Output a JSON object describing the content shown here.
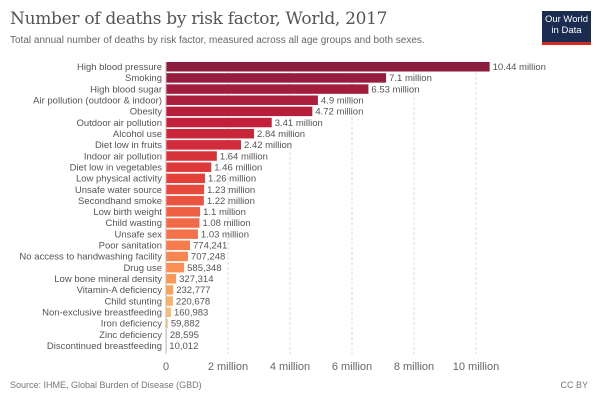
{
  "header": {
    "title": "Number of deaths by risk factor, World, 2017",
    "subtitle": "Total annual number of deaths by risk factor, measured across all age groups and both sexes.",
    "logo_text": "Our World in Data"
  },
  "footer": {
    "source": "Source: IHME, Global Burden of Disease (GBD)",
    "license": "CC BY"
  },
  "colors": {
    "scale": [
      "#8c1c3e",
      "#c21f3c",
      "#e4403a",
      "#f5734a",
      "#fba25a",
      "#fde29a"
    ]
  },
  "chart_data": {
    "type": "bar",
    "orientation": "horizontal",
    "title": "Number of deaths by risk factor, World, 2017",
    "xlim": [
      0,
      10440000
    ],
    "grid": "vertical dashed",
    "ticks": [
      {
        "value": 0,
        "label": "0"
      },
      {
        "value": 2000000,
        "label": "2 million"
      },
      {
        "value": 4000000,
        "label": "4 million"
      },
      {
        "value": 6000000,
        "label": "6 million"
      },
      {
        "value": 8000000,
        "label": "8 million"
      },
      {
        "value": 10000000,
        "label": "10 million"
      }
    ],
    "categories": [
      "High blood pressure",
      "Smoking",
      "High blood sugar",
      "Air pollution (outdoor & indoor)",
      "Obesity",
      "Outdoor air pollution",
      "Alcohol use",
      "Diet low in fruits",
      "Indoor air pollution",
      "Diet low in vegetables",
      "Low physical activity",
      "Unsafe water source",
      "Secondhand smoke",
      "Low birth weight",
      "Child wasting",
      "Unsafe sex",
      "Poor sanitation",
      "No access to handwashing facility",
      "Drug use",
      "Low bone mineral density",
      "Vitamin-A deficiency",
      "Child stunting",
      "Non-exclusive breastfeeding",
      "Iron deficiency",
      "Zinc deficiency",
      "Discontinued breastfeeding"
    ],
    "values": [
      10440000,
      7100000,
      6530000,
      4900000,
      4720000,
      3410000,
      2840000,
      2420000,
      1640000,
      1460000,
      1260000,
      1230000,
      1220000,
      1100000,
      1080000,
      1030000,
      774241,
      707248,
      585348,
      327314,
      232777,
      220678,
      160983,
      59882,
      28595,
      10012
    ],
    "labels": [
      "10.44 million",
      "7.1 million",
      "6.53 million",
      "4.9 million",
      "4.72 million",
      "3.41 million",
      "2.84 million",
      "2.42 million",
      "1.64 million",
      "1.46 million",
      "1.26 million",
      "1.23 million",
      "1.22 million",
      "1.1 million",
      "1.08 million",
      "1.03 million",
      "774,241",
      "707,248",
      "585,348",
      "327,314",
      "232,777",
      "220,678",
      "160,983",
      "59,882",
      "28,595",
      "10,012"
    ]
  }
}
